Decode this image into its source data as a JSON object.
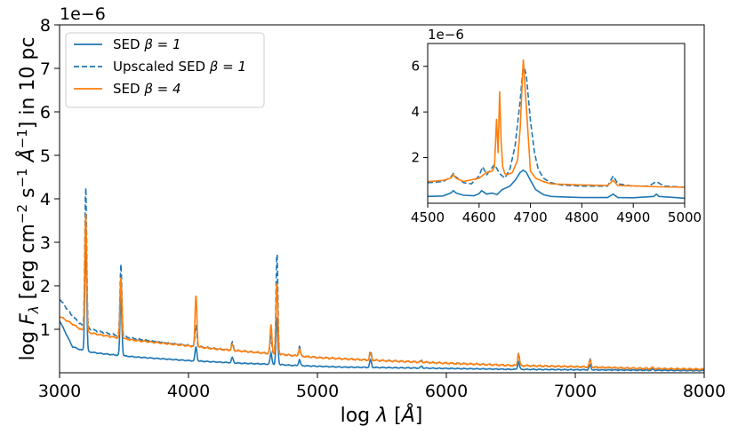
{
  "chart_data": [
    {
      "type": "line",
      "xlabel": "log λ [Å]",
      "ylabel": "log F_λ [erg cm⁻² s⁻¹ Å⁻¹] in 10 pc",
      "xlim": [
        3000,
        8000
      ],
      "ylim": [
        0,
        8
      ],
      "y_offset_text": "1e−6",
      "xticks": [
        "3000",
        "4000",
        "5000",
        "6000",
        "7000",
        "8000"
      ],
      "yticks": [
        "1",
        "2",
        "3",
        "4",
        "5",
        "6",
        "7",
        "8"
      ],
      "legend_position": "upper-left",
      "grid": false,
      "legend": [
        {
          "name_prefix": "SED ",
          "name_math": "β = 1",
          "color": "#1f77b4",
          "style": "solid"
        },
        {
          "name_prefix": "Upscaled SED ",
          "name_math": "β = 1",
          "color": "#1f77b4",
          "style": "dashed"
        },
        {
          "name_prefix": "SED ",
          "name_math": "β = 4",
          "color": "#ff7f0e",
          "style": "solid"
        }
      ],
      "continuum": {
        "x": [
          3000,
          3100,
          3190,
          3300,
          3460,
          3600,
          3800,
          4000,
          4200,
          4400,
          4600,
          4700,
          4800,
          5000,
          5200,
          5500,
          6000,
          6500,
          7000,
          7500,
          8000
        ],
        "sed_beta1": [
          1.2,
          0.6,
          0.5,
          0.45,
          0.4,
          0.36,
          0.32,
          0.28,
          0.25,
          0.22,
          0.2,
          0.19,
          0.17,
          0.15,
          0.13,
          0.12,
          0.1,
          0.08,
          0.07,
          0.06,
          0.05
        ],
        "upscaled_sed_beta1": [
          1.7,
          1.3,
          1.05,
          0.95,
          0.85,
          0.78,
          0.7,
          0.63,
          0.56,
          0.5,
          0.45,
          0.43,
          0.4,
          0.35,
          0.32,
          0.28,
          0.22,
          0.17,
          0.14,
          0.1,
          0.08
        ],
        "sed_beta4": [
          1.3,
          1.12,
          0.95,
          0.88,
          0.8,
          0.74,
          0.68,
          0.62,
          0.55,
          0.5,
          0.45,
          0.43,
          0.4,
          0.35,
          0.32,
          0.28,
          0.22,
          0.17,
          0.14,
          0.1,
          0.08
        ]
      },
      "lines": [
        {
          "x": 3203,
          "sed_beta1": 3.2,
          "upscaled_sed_beta1": 4.3,
          "sed_beta4": 3.7
        },
        {
          "x": 3476,
          "sed_beta1": 1.8,
          "upscaled_sed_beta1": 2.5,
          "sed_beta4": 2.2
        },
        {
          "x": 4058,
          "sed_beta1": 0.6,
          "upscaled_sed_beta1": 1.1,
          "sed_beta4": 1.8
        },
        {
          "x": 4340,
          "sed_beta1": 0.35,
          "upscaled_sed_beta1": 0.7,
          "sed_beta4": 0.65
        },
        {
          "x": 4640,
          "sed_beta1": 0.45,
          "upscaled_sed_beta1": 0.85,
          "sed_beta4": 1.1
        },
        {
          "x": 4686,
          "sed_beta1": 1.3,
          "upscaled_sed_beta1": 2.8,
          "sed_beta4": 2.1
        },
        {
          "x": 4861,
          "sed_beta1": 0.3,
          "upscaled_sed_beta1": 0.6,
          "sed_beta4": 0.55
        },
        {
          "x": 5412,
          "sed_beta1": 0.3,
          "upscaled_sed_beta1": 0.5,
          "sed_beta4": 0.45
        },
        {
          "x": 5808,
          "sed_beta1": 0.15,
          "upscaled_sed_beta1": 0.28,
          "sed_beta4": 0.26
        },
        {
          "x": 6560,
          "sed_beta1": 0.25,
          "upscaled_sed_beta1": 0.45,
          "sed_beta4": 0.42
        },
        {
          "x": 7115,
          "sed_beta1": 0.18,
          "upscaled_sed_beta1": 0.3,
          "sed_beta4": 0.28
        },
        {
          "x": 7600,
          "sed_beta1": 0.08,
          "upscaled_sed_beta1": 0.12,
          "sed_beta4": 0.12
        }
      ]
    },
    {
      "type": "line",
      "role": "inset",
      "xlim": [
        4500,
        5000
      ],
      "ylim": [
        0,
        7
      ],
      "y_offset_text": "1e−6",
      "xticks": [
        "4500",
        "4600",
        "4700",
        "4800",
        "4900",
        "5000"
      ],
      "yticks": [
        "2",
        "4",
        "6"
      ],
      "sed_beta1": {
        "x": [
          4500,
          4530,
          4545,
          4550,
          4555,
          4570,
          4590,
          4600,
          4605,
          4615,
          4625,
          4635,
          4645,
          4660,
          4670,
          4680,
          4686,
          4692,
          4700,
          4710,
          4725,
          4740,
          4760,
          4800,
          4850,
          4861,
          4870,
          4900,
          4940,
          4945,
          4950,
          5000
        ],
        "y": [
          0.3,
          0.32,
          0.45,
          0.55,
          0.45,
          0.35,
          0.33,
          0.42,
          0.55,
          0.4,
          0.45,
          0.38,
          0.6,
          0.75,
          1.0,
          1.35,
          1.45,
          1.35,
          1.0,
          0.6,
          0.38,
          0.3,
          0.28,
          0.25,
          0.25,
          0.4,
          0.25,
          0.24,
          0.3,
          0.4,
          0.3,
          0.22
        ]
      },
      "upscaled_sed_beta1": {
        "x": [
          4500,
          4530,
          4545,
          4550,
          4555,
          4570,
          4585,
          4600,
          4607,
          4615,
          4625,
          4630,
          4640,
          4650,
          4660,
          4670,
          4680,
          4686,
          4692,
          4700,
          4708,
          4715,
          4725,
          4740,
          4760,
          4800,
          4850,
          4861,
          4870,
          4900,
          4930,
          4945,
          4960,
          5000
        ],
        "y": [
          0.9,
          0.95,
          1.15,
          1.3,
          1.15,
          0.9,
          0.85,
          1.2,
          1.6,
          1.25,
          1.55,
          1.7,
          1.3,
          1.1,
          1.5,
          2.5,
          4.5,
          6.1,
          5.6,
          3.6,
          2.2,
          1.5,
          1.1,
          0.9,
          0.8,
          0.75,
          0.75,
          1.2,
          0.85,
          0.75,
          0.75,
          0.95,
          0.75,
          0.7
        ]
      },
      "sed_beta4": {
        "x": [
          4500,
          4530,
          4545,
          4550,
          4555,
          4570,
          4600,
          4615,
          4625,
          4630,
          4634,
          4637,
          4640,
          4643,
          4646,
          4650,
          4655,
          4665,
          4675,
          4680,
          4686,
          4692,
          4700,
          4710,
          4725,
          4740,
          4800,
          4850,
          4861,
          4870,
          4900,
          4950,
          5000
        ],
        "y": [
          0.95,
          1.0,
          1.1,
          1.25,
          1.1,
          0.95,
          1.1,
          1.35,
          1.4,
          1.6,
          3.7,
          2.2,
          4.9,
          2.7,
          1.6,
          1.3,
          1.25,
          1.35,
          1.9,
          3.3,
          6.3,
          4.2,
          1.4,
          1.1,
          0.95,
          0.85,
          0.8,
          0.78,
          1.0,
          0.78,
          0.76,
          0.72,
          0.7
        ]
      }
    }
  ]
}
